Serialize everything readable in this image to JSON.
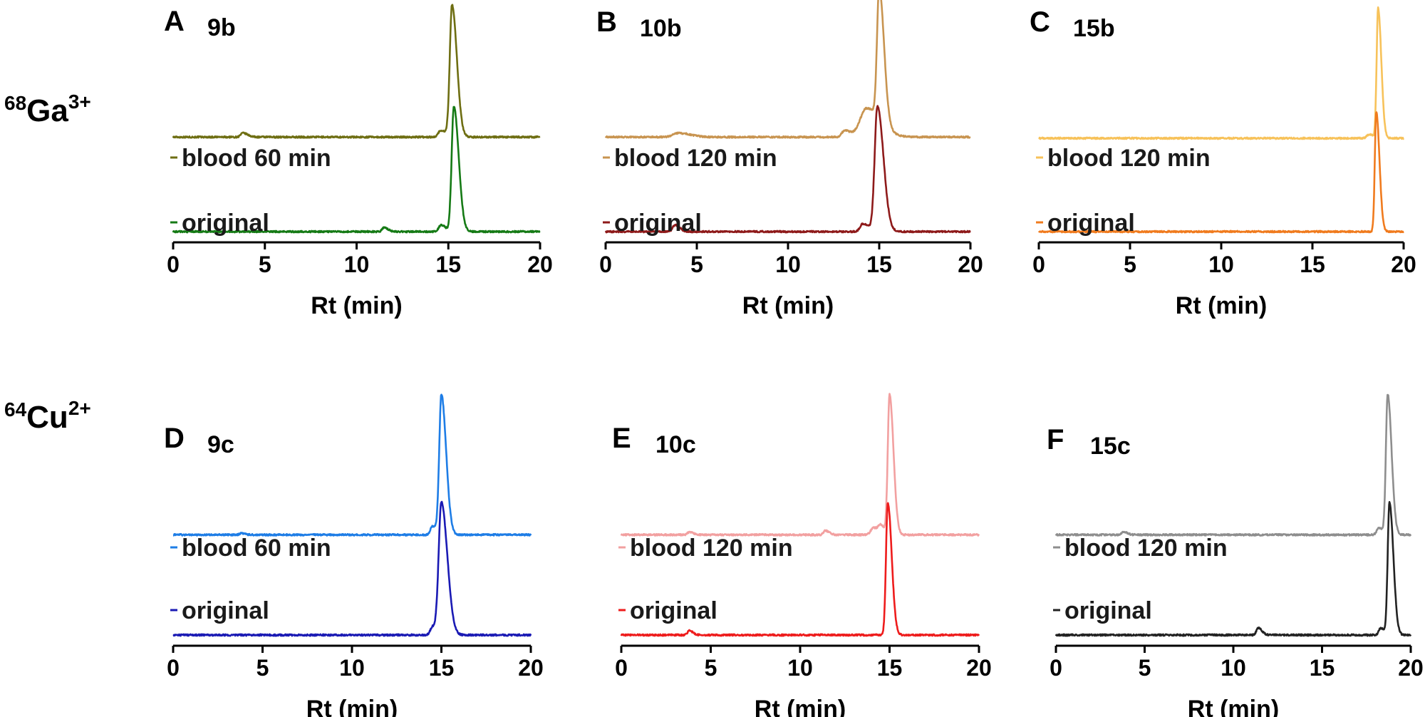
{
  "row_labels": [
    {
      "mass": "68",
      "element": "Ga",
      "charge": "3+"
    },
    {
      "mass": "64",
      "element": "Cu",
      "charge": "2+"
    }
  ],
  "chart_data": [
    {
      "type": "line",
      "panel": "A",
      "compound": "9b",
      "xlabel": "Rt (min)",
      "xlim": [
        0,
        20
      ],
      "xticks": [
        0,
        5,
        10,
        15,
        20
      ],
      "series": [
        {
          "name": "blood 60 min",
          "color": "#6e6e12",
          "baseline": 0.72,
          "peaks": [
            {
              "x": 3.8,
              "h": 0.03,
              "w": 0.12
            },
            {
              "x": 14.6,
              "h": 0.05,
              "w": 0.15
            },
            {
              "x": 15.2,
              "h": 1.0,
              "w": 0.12
            }
          ]
        },
        {
          "name": "original",
          "color": "#157a15",
          "baseline": 0.0,
          "peaks": [
            {
              "x": 11.5,
              "h": 0.03,
              "w": 0.1
            },
            {
              "x": 14.6,
              "h": 0.05,
              "w": 0.12
            },
            {
              "x": 15.3,
              "h": 0.95,
              "w": 0.12
            }
          ]
        }
      ]
    },
    {
      "type": "line",
      "panel": "B",
      "compound": "10b",
      "xlabel": "Rt (min)",
      "xlim": [
        0,
        20
      ],
      "xticks": [
        0,
        5,
        10,
        15,
        20
      ],
      "series": [
        {
          "name": "blood 120 min",
          "color": "#c89450",
          "baseline": 0.72,
          "peaks": [
            {
              "x": 4.0,
              "h": 0.03,
              "w": 0.3
            },
            {
              "x": 13.1,
              "h": 0.05,
              "w": 0.15
            },
            {
              "x": 14.3,
              "h": 0.22,
              "w": 0.35
            },
            {
              "x": 15.0,
              "h": 1.0,
              "w": 0.12
            }
          ]
        },
        {
          "name": "original",
          "color": "#8e1a1a",
          "baseline": 0.0,
          "peaks": [
            {
              "x": 3.8,
              "h": 0.05,
              "w": 0.12
            },
            {
              "x": 14.1,
              "h": 0.06,
              "w": 0.15
            },
            {
              "x": 14.9,
              "h": 0.95,
              "w": 0.15
            }
          ]
        }
      ]
    },
    {
      "type": "line",
      "panel": "C",
      "compound": "15b",
      "xlabel": "Rt (min)",
      "xlim": [
        0,
        20
      ],
      "xticks": [
        0,
        5,
        10,
        15,
        20
      ],
      "series": [
        {
          "name": "blood 120 min",
          "color": "#f7c25a",
          "baseline": 0.72,
          "peaks": [
            {
              "x": 18.1,
              "h": 0.03,
              "w": 0.12
            },
            {
              "x": 18.6,
              "h": 1.0,
              "w": 0.08
            }
          ]
        },
        {
          "name": "original",
          "color": "#f07b1e",
          "baseline": 0.0,
          "peaks": [
            {
              "x": 18.5,
              "h": 0.92,
              "w": 0.08
            }
          ]
        }
      ]
    },
    {
      "type": "line",
      "panel": "D",
      "compound": "9c",
      "xlabel": "Rt (min)",
      "xlim": [
        0,
        20
      ],
      "xticks": [
        0,
        5,
        10,
        15,
        20
      ],
      "series": [
        {
          "name": "blood 60 min",
          "color": "#1e7de6",
          "baseline": 0.72,
          "peaks": [
            {
              "x": 3.8,
              "h": 0.01,
              "w": 0.1
            },
            {
              "x": 14.5,
              "h": 0.06,
              "w": 0.12
            },
            {
              "x": 15.0,
              "h": 1.0,
              "w": 0.12
            }
          ]
        },
        {
          "name": "original",
          "color": "#1a1ab4",
          "baseline": 0.0,
          "peaks": [
            {
              "x": 14.5,
              "h": 0.06,
              "w": 0.12
            },
            {
              "x": 15.0,
              "h": 0.95,
              "w": 0.15
            }
          ]
        }
      ]
    },
    {
      "type": "line",
      "panel": "E",
      "compound": "10c",
      "xlabel": "Rt (min)",
      "xlim": [
        0,
        20
      ],
      "xticks": [
        0,
        5,
        10,
        15,
        20
      ],
      "series": [
        {
          "name": "blood 120 min",
          "color": "#f2a0a0",
          "baseline": 0.72,
          "peaks": [
            {
              "x": 3.8,
              "h": 0.02,
              "w": 0.1
            },
            {
              "x": 11.4,
              "h": 0.03,
              "w": 0.1
            },
            {
              "x": 14.1,
              "h": 0.05,
              "w": 0.15
            },
            {
              "x": 14.5,
              "h": 0.05,
              "w": 0.12
            },
            {
              "x": 15.0,
              "h": 1.0,
              "w": 0.1
            }
          ]
        },
        {
          "name": "original",
          "color": "#ee1c1c",
          "baseline": 0.0,
          "peaks": [
            {
              "x": 3.8,
              "h": 0.03,
              "w": 0.1
            },
            {
              "x": 14.9,
              "h": 0.95,
              "w": 0.1
            }
          ]
        }
      ]
    },
    {
      "type": "line",
      "panel": "F",
      "compound": "15c",
      "xlabel": "Rt (min)",
      "xlim": [
        0,
        20
      ],
      "xticks": [
        0,
        5,
        10,
        15,
        20
      ],
      "series": [
        {
          "name": "blood 120 min",
          "color": "#8e8e8e",
          "baseline": 0.72,
          "peaks": [
            {
              "x": 3.8,
              "h": 0.02,
              "w": 0.1
            },
            {
              "x": 18.2,
              "h": 0.05,
              "w": 0.12
            },
            {
              "x": 18.7,
              "h": 1.0,
              "w": 0.1
            }
          ]
        },
        {
          "name": "original",
          "color": "#222222",
          "baseline": 0.0,
          "peaks": [
            {
              "x": 11.4,
              "h": 0.05,
              "w": 0.1
            },
            {
              "x": 18.3,
              "h": 0.05,
              "w": 0.1
            },
            {
              "x": 18.8,
              "h": 0.95,
              "w": 0.1
            }
          ]
        }
      ]
    }
  ]
}
